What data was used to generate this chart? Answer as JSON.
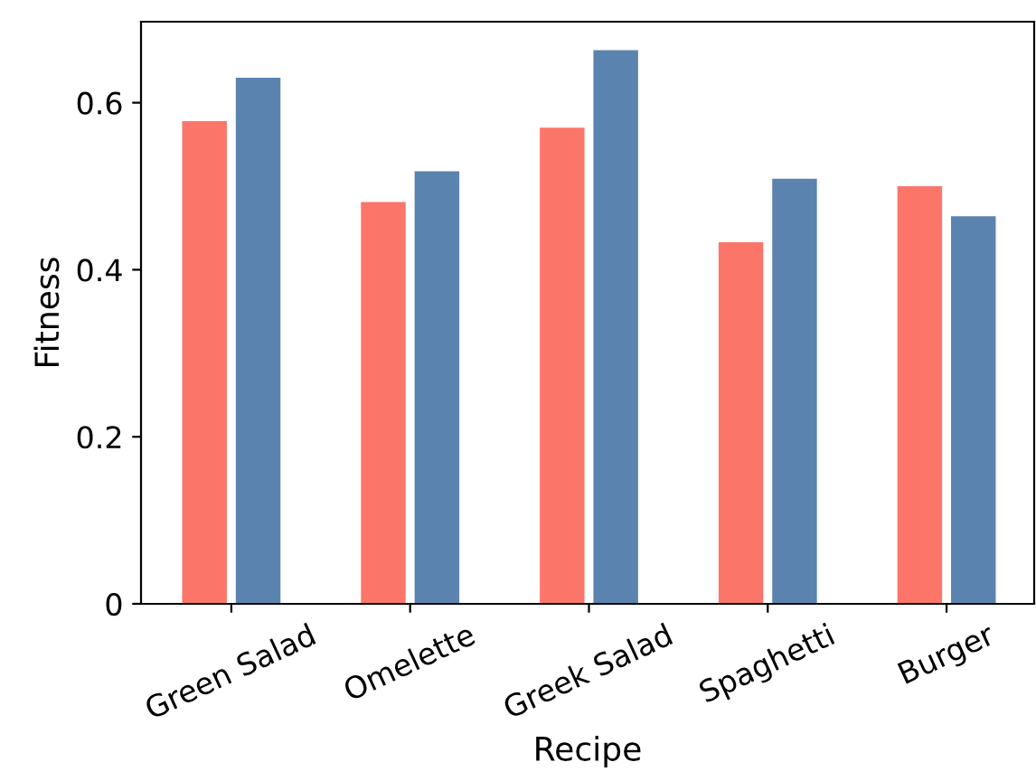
{
  "chart_data": {
    "type": "bar",
    "xlabel": "Recipe",
    "ylabel": "Fitness",
    "categories": [
      "Green Salad",
      "Omelette",
      "Greek Salad",
      "Spaghetti",
      "Burger"
    ],
    "series": [
      {
        "color": "#fb7669",
        "values": [
          0.578,
          0.481,
          0.57,
          0.433,
          0.5
        ]
      },
      {
        "color": "#5b83b0",
        "values": [
          0.63,
          0.518,
          0.663,
          0.509,
          0.464
        ]
      }
    ],
    "ylim": [
      0,
      0.697
    ],
    "yticks": [
      0,
      0.2,
      0.4,
      0.6
    ],
    "grid": false,
    "legend": false
  }
}
